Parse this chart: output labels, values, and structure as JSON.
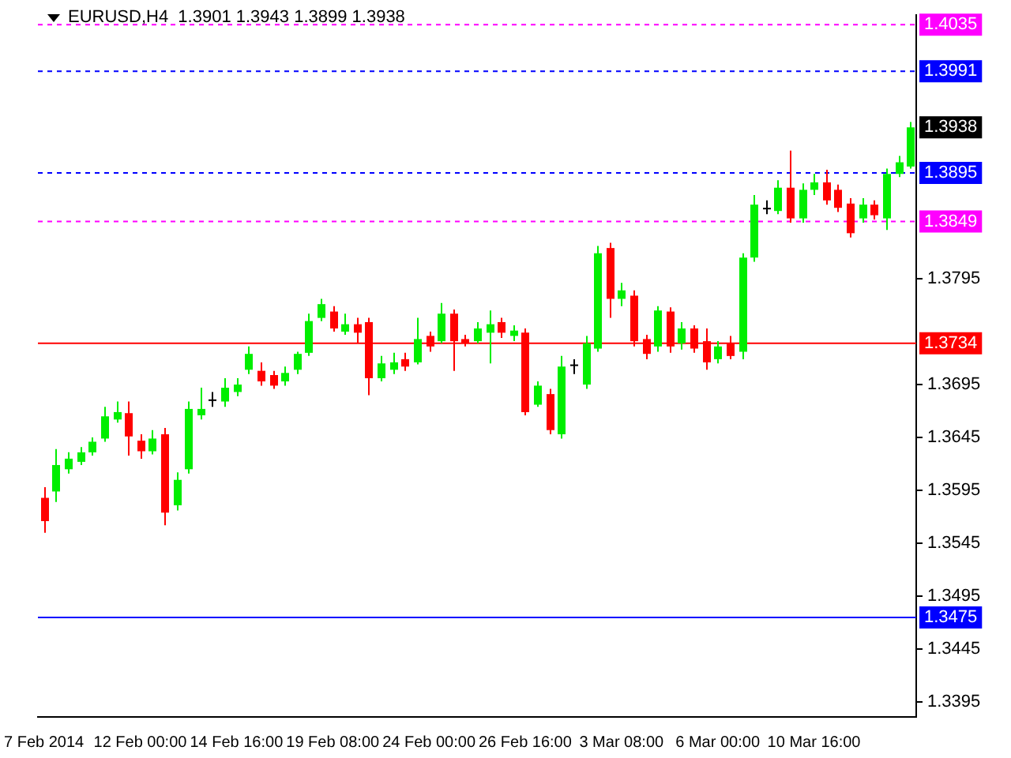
{
  "chart_data": {
    "type": "candlestick",
    "title": "EURUSD,H4  1.3901 1.3943 1.3899 1.3938",
    "categories": [
      "7 Feb 2014",
      null,
      null,
      null,
      null,
      null,
      null,
      null,
      "12 Feb 00:00",
      null,
      null,
      null,
      null,
      null,
      null,
      null,
      "14 Feb 16:00",
      null,
      null,
      null,
      null,
      null,
      null,
      null,
      "19 Feb 08:00",
      null,
      null,
      null,
      null,
      null,
      null,
      null,
      "24 Feb 00:00",
      null,
      null,
      null,
      null,
      null,
      null,
      null,
      "26 Feb 16:00",
      null,
      null,
      null,
      null,
      null,
      null,
      null,
      "3 Mar 08:00",
      null,
      null,
      null,
      null,
      null,
      null,
      null,
      "6 Mar 00:00",
      null,
      null,
      null,
      null,
      null,
      null,
      null,
      "10 Mar 16:00",
      null,
      null,
      null,
      null,
      null,
      null,
      null,
      null
    ],
    "ohlc": [
      [
        1.3588,
        1.3598,
        1.3555,
        1.3566
      ],
      [
        1.3594,
        1.3634,
        1.3584,
        1.3619
      ],
      [
        1.3615,
        1.3631,
        1.3611,
        1.3625
      ],
      [
        1.3622,
        1.3636,
        1.3619,
        1.3631
      ],
      [
        1.3631,
        1.3645,
        1.3628,
        1.3641
      ],
      [
        1.3644,
        1.3674,
        1.3641,
        1.3665
      ],
      [
        1.3662,
        1.3679,
        1.3659,
        1.3669
      ],
      [
        1.3668,
        1.3679,
        1.3628,
        1.3646
      ],
      [
        1.3642,
        1.3648,
        1.3625,
        1.3632
      ],
      [
        1.3632,
        1.3652,
        1.3629,
        1.3644
      ],
      [
        1.3648,
        1.3654,
        1.3562,
        1.3574
      ],
      [
        1.3581,
        1.3612,
        1.3576,
        1.3605
      ],
      [
        1.3615,
        1.3679,
        1.3611,
        1.3672
      ],
      [
        1.3666,
        1.3692,
        1.3662,
        1.3672
      ],
      [
        1.3681,
        1.3688,
        1.3674,
        1.3681
      ],
      [
        1.3679,
        1.3701,
        1.3674,
        1.3692
      ],
      [
        1.3688,
        1.3701,
        1.3684,
        1.3695
      ],
      [
        1.3709,
        1.3731,
        1.3705,
        1.3724
      ],
      [
        1.3708,
        1.3716,
        1.3694,
        1.3698
      ],
      [
        1.3704,
        1.3708,
        1.3691,
        1.3694
      ],
      [
        1.3698,
        1.3712,
        1.3694,
        1.3706
      ],
      [
        1.3709,
        1.3726,
        1.3705,
        1.3724
      ],
      [
        1.3725,
        1.3762,
        1.3722,
        1.3755
      ],
      [
        1.3758,
        1.3776,
        1.3755,
        1.3771
      ],
      [
        1.3764,
        1.3769,
        1.3745,
        1.3748
      ],
      [
        1.3745,
        1.3762,
        1.3742,
        1.3752
      ],
      [
        1.3752,
        1.3758,
        1.3734,
        1.3744
      ],
      [
        1.3754,
        1.3758,
        1.3685,
        1.3701
      ],
      [
        1.3701,
        1.3722,
        1.3698,
        1.3715
      ],
      [
        1.3709,
        1.3725,
        1.3705,
        1.3716
      ],
      [
        1.3719,
        1.3725,
        1.3708,
        1.3712
      ],
      [
        1.3716,
        1.3758,
        1.3714,
        1.3738
      ],
      [
        1.3741,
        1.3745,
        1.3726,
        1.3731
      ],
      [
        1.3736,
        1.3772,
        1.3734,
        1.3762
      ],
      [
        1.3762,
        1.3766,
        1.3708,
        1.3736
      ],
      [
        1.3738,
        1.3742,
        1.3731,
        1.3734
      ],
      [
        1.3736,
        1.3754,
        1.3734,
        1.3748
      ],
      [
        1.3744,
        1.3765,
        1.3715,
        1.3752
      ],
      [
        1.3754,
        1.3758,
        1.3739,
        1.3744
      ],
      [
        1.3741,
        1.3751,
        1.3736,
        1.3746
      ],
      [
        1.3744,
        1.3748,
        1.3666,
        1.3669
      ],
      [
        1.3676,
        1.3698,
        1.3674,
        1.3694
      ],
      [
        1.3686,
        1.3691,
        1.3648,
        1.3652
      ],
      [
        1.3648,
        1.3722,
        1.3644,
        1.3712
      ],
      [
        1.3714,
        1.3719,
        1.3705,
        1.3714
      ],
      [
        1.3695,
        1.3741,
        1.3691,
        1.3734
      ],
      [
        1.3729,
        1.3826,
        1.3726,
        1.3819
      ],
      [
        1.3824,
        1.3829,
        1.3758,
        1.3776
      ],
      [
        1.3776,
        1.3791,
        1.3769,
        1.3784
      ],
      [
        1.3779,
        1.3784,
        1.3731,
        1.3736
      ],
      [
        1.3738,
        1.3742,
        1.3719,
        1.3724
      ],
      [
        1.3731,
        1.3769,
        1.3726,
        1.3765
      ],
      [
        1.3764,
        1.3768,
        1.3725,
        1.3731
      ],
      [
        1.3734,
        1.3754,
        1.3728,
        1.3748
      ],
      [
        1.3748,
        1.3751,
        1.3725,
        1.3729
      ],
      [
        1.3736,
        1.3748,
        1.3709,
        1.3716
      ],
      [
        1.3719,
        1.3736,
        1.3715,
        1.3731
      ],
      [
        1.3734,
        1.3741,
        1.3719,
        1.3722
      ],
      [
        1.3726,
        1.3819,
        1.3719,
        1.3815
      ],
      [
        1.3815,
        1.3874,
        1.3811,
        1.3865
      ],
      [
        1.3862,
        1.3869,
        1.3856,
        1.3862
      ],
      [
        1.3859,
        1.3888,
        1.3856,
        1.3881
      ],
      [
        1.3881,
        1.3916,
        1.3848,
        1.3852
      ],
      [
        1.3852,
        1.3885,
        1.3848,
        1.3879
      ],
      [
        1.3879,
        1.3894,
        1.3874,
        1.3886
      ],
      [
        1.3886,
        1.3898,
        1.3865,
        1.3869
      ],
      [
        1.3879,
        1.3884,
        1.3858,
        1.3862
      ],
      [
        1.3866,
        1.3871,
        1.3834,
        1.3838
      ],
      [
        1.3852,
        1.3871,
        1.3848,
        1.3865
      ],
      [
        1.3865,
        1.3869,
        1.3851,
        1.3855
      ],
      [
        1.3852,
        1.3899,
        1.3841,
        1.3894
      ],
      [
        1.3894,
        1.3911,
        1.3891,
        1.3905
      ],
      [
        1.3901,
        1.3943,
        1.3899,
        1.3938
      ]
    ],
    "colors": [
      "#ff0000",
      "#00ee00",
      "#00ee00",
      "#00ee00",
      "#00ee00",
      "#00ee00",
      "#00ee00",
      "#ff0000",
      "#ff0000",
      "#00ee00",
      "#ff0000",
      "#00ee00",
      "#00ee00",
      "#00ee00",
      "#000000",
      "#00ee00",
      "#00ee00",
      "#00ee00",
      "#ff0000",
      "#ff0000",
      "#00ee00",
      "#00ee00",
      "#00ee00",
      "#00ee00",
      "#ff0000",
      "#00ee00",
      "#ff0000",
      "#ff0000",
      "#00ee00",
      "#00ee00",
      "#ff0000",
      "#00ee00",
      "#ff0000",
      "#00ee00",
      "#ff0000",
      "#ff0000",
      "#00ee00",
      "#00ee00",
      "#ff0000",
      "#00ee00",
      "#ff0000",
      "#00ee00",
      "#ff0000",
      "#00ee00",
      "#000000",
      "#00ee00",
      "#00ee00",
      "#ff0000",
      "#00ee00",
      "#ff0000",
      "#ff0000",
      "#00ee00",
      "#ff0000",
      "#00ee00",
      "#ff0000",
      "#ff0000",
      "#00ee00",
      "#ff0000",
      "#00ee00",
      "#00ee00",
      "#000000",
      "#00ee00",
      "#ff0000",
      "#00ee00",
      "#00ee00",
      "#ff0000",
      "#ff0000",
      "#ff0000",
      "#00ee00",
      "#ff0000",
      "#00ee00",
      "#00ee00",
      "#00ee00"
    ],
    "ylim": [
      1.3381,
      1.4044
    ],
    "yticks": [
      1.3395,
      1.3445,
      1.3495,
      1.3545,
      1.3595,
      1.3645,
      1.3695,
      1.3795
    ],
    "ref_lines": [
      {
        "axis": "y",
        "value": 1.4035,
        "label": "1.4035",
        "color": "#ff00ff",
        "line_style": "dashed"
      },
      {
        "axis": "y",
        "value": 1.3991,
        "label": "1.3991",
        "color": "#0000ff",
        "line_style": "dashed"
      },
      {
        "axis": "y",
        "value": 1.3895,
        "label": "1.3895",
        "color": "#0000ff",
        "line_style": "dashed"
      },
      {
        "axis": "y",
        "value": 1.3849,
        "label": "1.3849",
        "color": "#ff00ff",
        "line_style": "dashed"
      },
      {
        "axis": "y",
        "value": 1.3734,
        "label": "1.3734",
        "color": "#ff0000",
        "line_style": "solid"
      },
      {
        "axis": "y",
        "value": 1.3475,
        "label": "1.3475",
        "color": "#0000ff",
        "line_style": "solid"
      }
    ],
    "annotations": [
      {
        "text": "1.3938",
        "y": 1.3938
      }
    ]
  }
}
